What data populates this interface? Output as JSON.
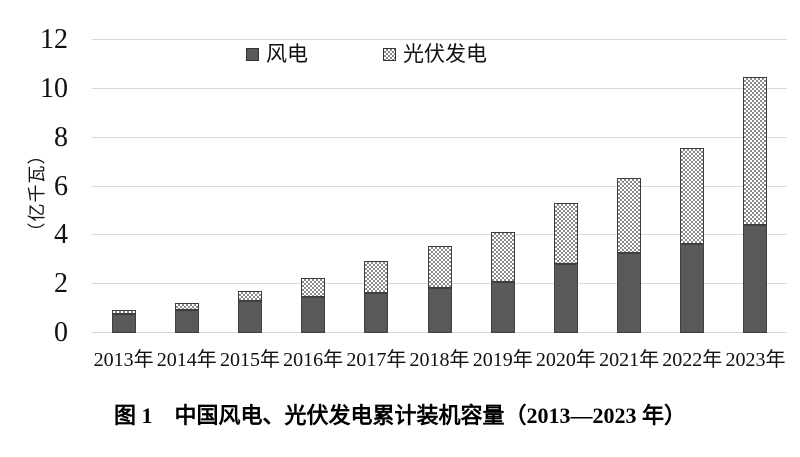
{
  "figure": {
    "caption": "图 1　中国风电、光伏发电累计装机容量（2013—2023 年）"
  },
  "chart_data": {
    "type": "bar",
    "stacked": true,
    "ylabel": "（亿千瓦）",
    "ylim": [
      0,
      12
    ],
    "yticks": [
      0,
      2,
      4,
      6,
      8,
      10,
      12
    ],
    "grid": true,
    "legend_position": "top",
    "categories": [
      "2013年",
      "2014年",
      "2015年",
      "2016年",
      "2017年",
      "2018年",
      "2019年",
      "2020年",
      "2021年",
      "2022年",
      "2023年"
    ],
    "series": [
      {
        "name": "风电",
        "style": "solid",
        "color": "#595959",
        "values": [
          0.77,
          0.96,
          1.31,
          1.49,
          1.64,
          1.84,
          2.1,
          2.81,
          3.28,
          3.65,
          4.41
        ]
      },
      {
        "name": "光伏发电",
        "style": "checker",
        "color": "#8a8a8a",
        "values": [
          0.19,
          0.28,
          0.43,
          0.77,
          1.3,
          1.74,
          2.04,
          2.53,
          3.06,
          3.93,
          6.09
        ]
      }
    ]
  },
  "colors": {
    "gridline": "#d9d9d9",
    "bar_border": "#3f3f3f",
    "text": "#111111"
  }
}
